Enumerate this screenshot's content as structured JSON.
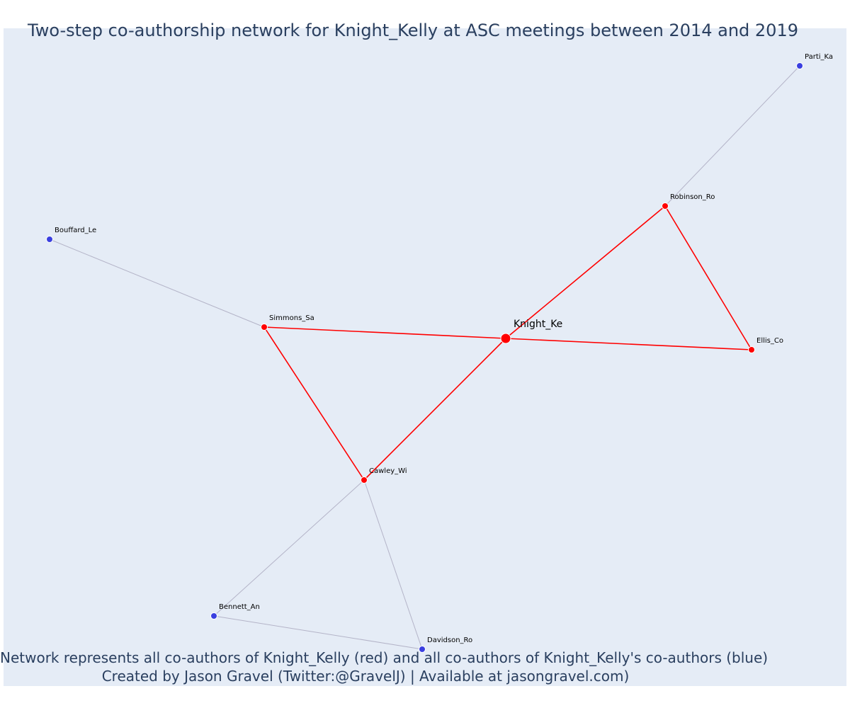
{
  "title": "Two-step co-authorship network for Knight_Kelly at ASC meetings between 2014 and 2019",
  "footnote": {
    "line1": "Network represents all co-authors of Knight_Kelly (red) and all co-authors of Knight_Kelly's co-authors (blue)",
    "line2": "Created by Jason Gravel (Twitter:@GravelJ) | Available at jasongravel.com)"
  },
  "colors": {
    "background": "#e5ecf6",
    "text": "#2a3f5f",
    "direct": "#ff0000",
    "indirect_edge": "#b4b4c8",
    "indirect_node": "#3a3fe0"
  },
  "network": {
    "focal": "Knight_Ke",
    "nodes": [
      {
        "id": "Knight_Ke",
        "group": "focal"
      },
      {
        "id": "Robinson_Ro",
        "group": "direct"
      },
      {
        "id": "Ellis_Co",
        "group": "direct"
      },
      {
        "id": "Simmons_Sa",
        "group": "direct"
      },
      {
        "id": "Cawley_Wi",
        "group": "direct"
      },
      {
        "id": "Parti_Ka",
        "group": "indirect"
      },
      {
        "id": "Bouffard_Le",
        "group": "indirect"
      },
      {
        "id": "Bennett_An",
        "group": "indirect"
      },
      {
        "id": "Davidson_Ro",
        "group": "indirect"
      }
    ],
    "edges": [
      {
        "source": "Knight_Ke",
        "target": "Robinson_Ro",
        "type": "direct"
      },
      {
        "source": "Knight_Ke",
        "target": "Ellis_Co",
        "type": "direct"
      },
      {
        "source": "Knight_Ke",
        "target": "Simmons_Sa",
        "type": "direct"
      },
      {
        "source": "Knight_Ke",
        "target": "Cawley_Wi",
        "type": "direct"
      },
      {
        "source": "Robinson_Ro",
        "target": "Ellis_Co",
        "type": "direct"
      },
      {
        "source": "Simmons_Sa",
        "target": "Cawley_Wi",
        "type": "direct"
      },
      {
        "source": "Robinson_Ro",
        "target": "Parti_Ka",
        "type": "indirect"
      },
      {
        "source": "Simmons_Sa",
        "target": "Bouffard_Le",
        "type": "indirect"
      },
      {
        "source": "Cawley_Wi",
        "target": "Bennett_An",
        "type": "indirect"
      },
      {
        "source": "Cawley_Wi",
        "target": "Davidson_Ro",
        "type": "indirect"
      },
      {
        "source": "Bennett_An",
        "target": "Davidson_Ro",
        "type": "indirect"
      }
    ]
  }
}
